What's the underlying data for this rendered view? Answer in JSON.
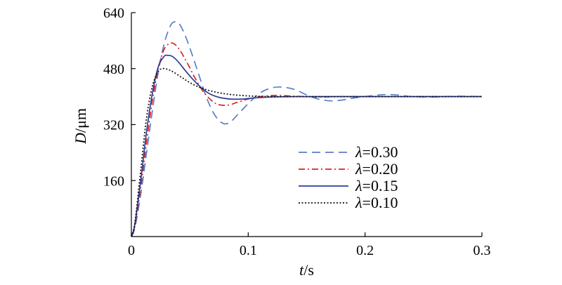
{
  "chart_data": {
    "type": "line",
    "title": "",
    "xlabel_var": "t",
    "xlabel_unit": "/s",
    "ylabel_var": "D",
    "ylabel_unit": "/μm",
    "xlim": [
      0,
      0.3
    ],
    "ylim": [
      0,
      640
    ],
    "xticks": [
      0,
      0.1,
      0.2,
      0.3
    ],
    "xtick_labels": [
      "0",
      "0.1",
      "0.2",
      "0.3"
    ],
    "yticks": [
      160,
      320,
      480,
      640
    ],
    "ytick_labels": [
      "160",
      "320",
      "480",
      "640"
    ],
    "grid": false,
    "legend_position": "center-right",
    "series": [
      {
        "name": "λ=0.30",
        "legend_var": "λ",
        "legend_value": "=0.30",
        "color": "#5b7fc7",
        "dash": "12,7",
        "points": [
          [
            0,
            0
          ],
          [
            0.003,
            25
          ],
          [
            0.008,
            120
          ],
          [
            0.013,
            240
          ],
          [
            0.018,
            360
          ],
          [
            0.023,
            470
          ],
          [
            0.028,
            550
          ],
          [
            0.033,
            600
          ],
          [
            0.037,
            614
          ],
          [
            0.041,
            608
          ],
          [
            0.046,
            575
          ],
          [
            0.052,
            520
          ],
          [
            0.058,
            460
          ],
          [
            0.064,
            400
          ],
          [
            0.07,
            355
          ],
          [
            0.075,
            332
          ],
          [
            0.08,
            322
          ],
          [
            0.085,
            328
          ],
          [
            0.09,
            345
          ],
          [
            0.1,
            380
          ],
          [
            0.11,
            410
          ],
          [
            0.12,
            425
          ],
          [
            0.13,
            427
          ],
          [
            0.14,
            420
          ],
          [
            0.15,
            405
          ],
          [
            0.16,
            393
          ],
          [
            0.17,
            388
          ],
          [
            0.18,
            390
          ],
          [
            0.19,
            396
          ],
          [
            0.2,
            400
          ],
          [
            0.21,
            404
          ],
          [
            0.22,
            406
          ],
          [
            0.23,
            404
          ],
          [
            0.24,
            400
          ],
          [
            0.26,
            399
          ],
          [
            0.28,
            401
          ],
          [
            0.3,
            400
          ]
        ]
      },
      {
        "name": "λ=0.20",
        "legend_var": "λ",
        "legend_value": "=0.20",
        "color": "#e02020",
        "dash": "9,4,2,4",
        "points": [
          [
            0,
            0
          ],
          [
            0.003,
            30
          ],
          [
            0.008,
            140
          ],
          [
            0.013,
            270
          ],
          [
            0.018,
            390
          ],
          [
            0.023,
            480
          ],
          [
            0.028,
            535
          ],
          [
            0.033,
            552
          ],
          [
            0.037,
            550
          ],
          [
            0.042,
            530
          ],
          [
            0.048,
            495
          ],
          [
            0.055,
            450
          ],
          [
            0.062,
            412
          ],
          [
            0.07,
            385
          ],
          [
            0.075,
            377
          ],
          [
            0.08,
            375
          ],
          [
            0.085,
            377
          ],
          [
            0.09,
            383
          ],
          [
            0.1,
            393
          ],
          [
            0.11,
            400
          ],
          [
            0.12,
            403
          ],
          [
            0.13,
            403
          ],
          [
            0.14,
            401
          ],
          [
            0.16,
            399
          ],
          [
            0.18,
            400
          ],
          [
            0.2,
            400
          ],
          [
            0.24,
            400
          ],
          [
            0.3,
            400
          ]
        ]
      },
      {
        "name": "λ=0.15",
        "legend_var": "λ",
        "legend_value": "=0.15",
        "color": "#2c3e95",
        "dash": "",
        "points": [
          [
            0,
            0
          ],
          [
            0.003,
            35
          ],
          [
            0.008,
            160
          ],
          [
            0.013,
            300
          ],
          [
            0.018,
            410
          ],
          [
            0.023,
            485
          ],
          [
            0.028,
            515
          ],
          [
            0.031,
            518
          ],
          [
            0.035,
            515
          ],
          [
            0.04,
            500
          ],
          [
            0.046,
            475
          ],
          [
            0.053,
            448
          ],
          [
            0.06,
            425
          ],
          [
            0.067,
            408
          ],
          [
            0.075,
            398
          ],
          [
            0.085,
            393
          ],
          [
            0.095,
            393
          ],
          [
            0.105,
            396
          ],
          [
            0.12,
            399
          ],
          [
            0.14,
            400
          ],
          [
            0.18,
            400
          ],
          [
            0.24,
            400
          ],
          [
            0.3,
            400
          ]
        ]
      },
      {
        "name": "λ=0.10",
        "legend_var": "λ",
        "legend_value": "=0.10",
        "color": "#111111",
        "dash": "2,2.5",
        "points": [
          [
            0,
            0
          ],
          [
            0.003,
            40
          ],
          [
            0.008,
            190
          ],
          [
            0.013,
            340
          ],
          [
            0.018,
            430
          ],
          [
            0.023,
            472
          ],
          [
            0.027,
            480
          ],
          [
            0.031,
            478
          ],
          [
            0.036,
            470
          ],
          [
            0.043,
            455
          ],
          [
            0.05,
            440
          ],
          [
            0.058,
            427
          ],
          [
            0.066,
            418
          ],
          [
            0.075,
            411
          ],
          [
            0.085,
            406
          ],
          [
            0.1,
            402
          ],
          [
            0.12,
            400
          ],
          [
            0.15,
            400
          ],
          [
            0.2,
            400
          ],
          [
            0.3,
            400
          ]
        ]
      }
    ]
  }
}
